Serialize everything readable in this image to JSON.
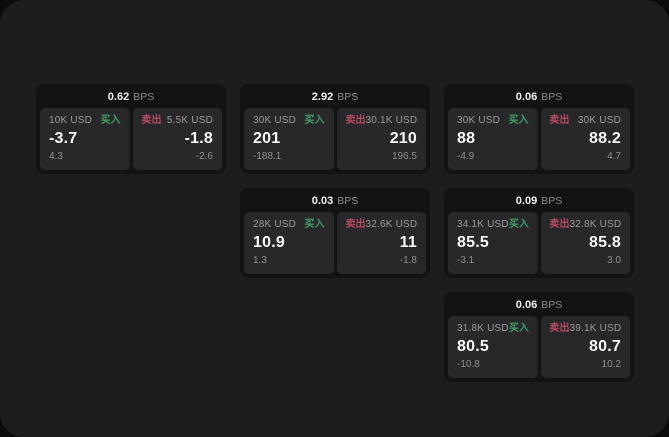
{
  "labels": {
    "bps_unit": "BPS",
    "buy": "买入",
    "sell": "卖出"
  },
  "colors": {
    "buy": "#3f9f64",
    "sell": "#b44a5f",
    "page_bg": "#0c0c0c",
    "panel_bg": "#1d1d1f",
    "card_bg": "#131314",
    "tile_bg": "#28282b"
  },
  "cards": [
    {
      "bps": "0.62",
      "row": 1,
      "col": 1,
      "buy": {
        "volume": "10K USD",
        "price": "-3.7",
        "delta": "4.3"
      },
      "sell": {
        "volume": "5.5K USD",
        "price": "-1.8",
        "delta": "-2.6"
      }
    },
    {
      "bps": "2.92",
      "row": 1,
      "col": 2,
      "buy": {
        "volume": "30K USD",
        "price": "201",
        "delta": "-188.1"
      },
      "sell": {
        "volume": "30.1K USD",
        "price": "210",
        "delta": "196.5"
      }
    },
    {
      "bps": "0.06",
      "row": 1,
      "col": 3,
      "buy": {
        "volume": "30K USD",
        "price": "88",
        "delta": "-4.9"
      },
      "sell": {
        "volume": "30K USD",
        "price": "88.2",
        "delta": "4.7"
      }
    },
    {
      "bps": "0.03",
      "row": 2,
      "col": 2,
      "buy": {
        "volume": "28K USD",
        "price": "10.9",
        "delta": "1.3"
      },
      "sell": {
        "volume": "32.6K USD",
        "price": "11",
        "delta": "-1.8"
      }
    },
    {
      "bps": "0.09",
      "row": 2,
      "col": 3,
      "buy": {
        "volume": "34.1K USD",
        "price": "85.5",
        "delta": "-3.1"
      },
      "sell": {
        "volume": "32.8K USD",
        "price": "85.8",
        "delta": "3.0"
      }
    },
    {
      "bps": "0.06",
      "row": 3,
      "col": 3,
      "buy": {
        "volume": "31.8K USD",
        "price": "80.5",
        "delta": "-10.8"
      },
      "sell": {
        "volume": "39.1K USD",
        "price": "80.7",
        "delta": "10.2"
      }
    }
  ]
}
